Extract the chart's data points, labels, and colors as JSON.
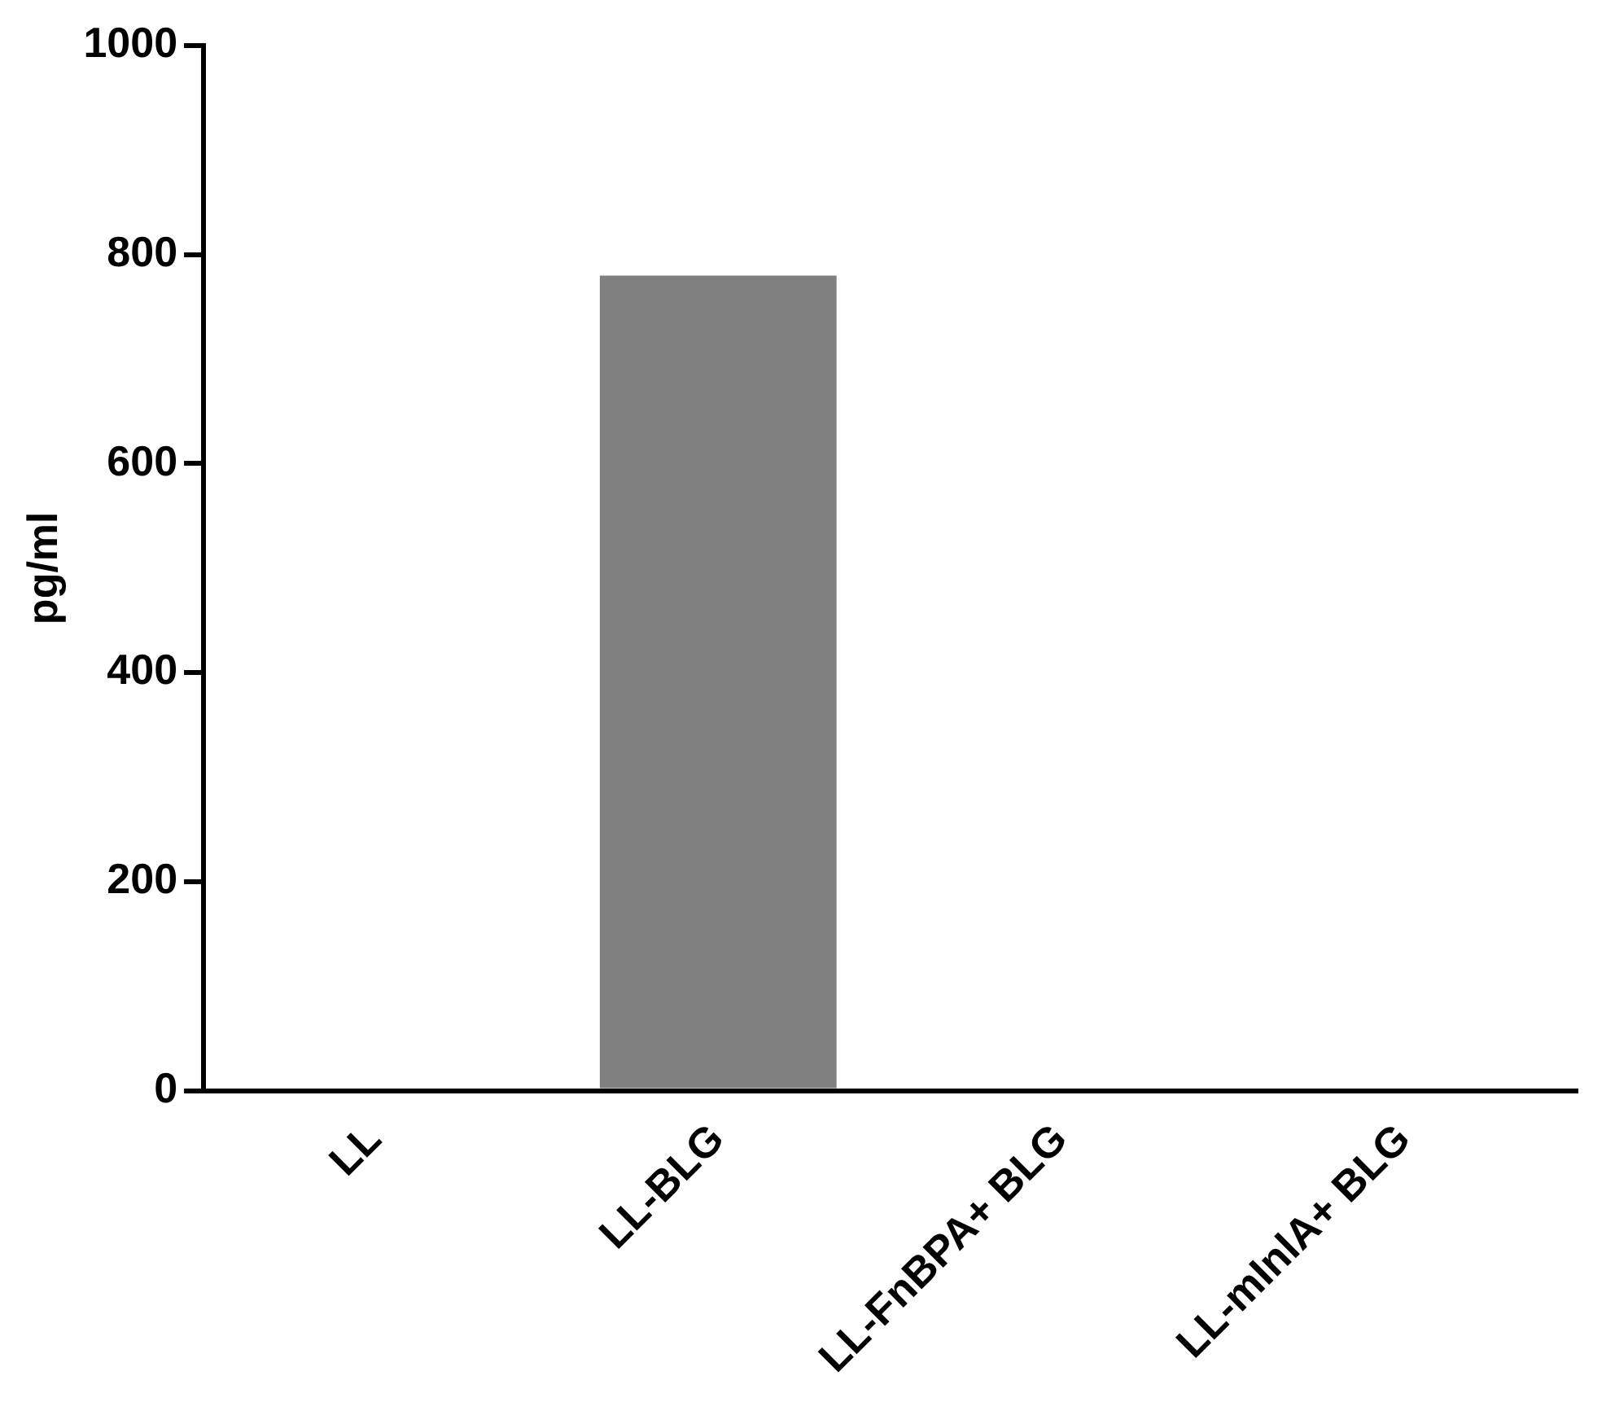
{
  "chart_data": {
    "type": "bar",
    "ylabel": "pg/ml",
    "categories": [
      "LL",
      "LL-BLG",
      "LL-FnBPA+ BLG",
      "LL-mInlA+ BLG"
    ],
    "values": [
      0,
      780,
      0,
      0
    ],
    "color": "#808080",
    "ylim": [
      0,
      1000
    ],
    "yticks": [
      0,
      200,
      400,
      600,
      800,
      1000
    ],
    "grid": false,
    "legend": false
  }
}
